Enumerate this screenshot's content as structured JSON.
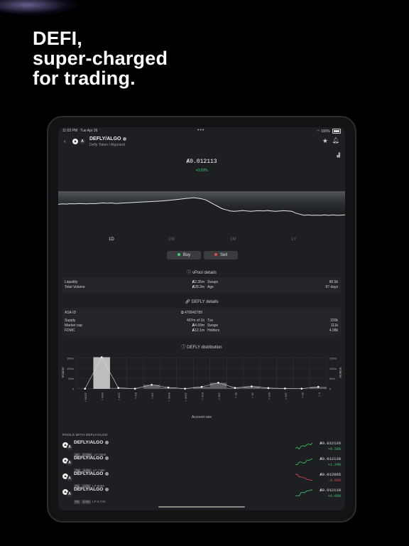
{
  "marketing": {
    "line1": "DEFI,",
    "line2": "super-charged",
    "line3": "for trading."
  },
  "status_bar": {
    "time": "11:03 PM",
    "date": "Tue Apr 26",
    "battery": "100%"
  },
  "header": {
    "pair": "DEFLY/ALGO",
    "subtitle": "Defly Token / Algorand"
  },
  "price": {
    "value": "0.012113",
    "change": "+0.09%"
  },
  "price_chart": {
    "type": "line",
    "values": [
      0.6,
      0.62,
      0.61,
      0.63,
      0.62,
      0.64,
      0.63,
      0.62,
      0.64,
      0.63,
      0.65,
      0.66,
      0.65,
      0.66,
      0.64,
      0.65,
      0.66,
      0.67,
      0.68,
      0.69,
      0.7,
      0.71,
      0.72,
      0.73,
      0.74,
      0.75,
      0.76,
      0.78,
      0.8,
      0.82,
      0.84,
      0.86,
      0.88,
      0.9,
      0.88,
      0.85,
      0.8,
      0.7,
      0.6,
      0.5,
      0.4,
      0.35,
      0.3,
      0.28,
      0.3,
      0.32,
      0.3,
      0.28,
      0.3,
      0.31,
      0.3,
      0.32,
      0.3,
      0.28,
      0.3,
      0.31,
      0.3,
      0.28,
      0.2,
      0.15,
      0.1,
      0.12,
      0.1,
      0.11,
      0.1,
      0.12,
      0.1,
      0.12,
      0.1,
      0.11,
      0.12
    ]
  },
  "timeframes": [
    "1D",
    "1W",
    "1M",
    "1Y"
  ],
  "actions": {
    "buy": "Buy",
    "sell": "Sell",
    "buy_color": "#3ccf68",
    "sell_color": "#e5484d"
  },
  "vpool": {
    "title": "vPool details",
    "liquidity_label": "Liquidity",
    "liquidity": "2.35m",
    "total_volume_label": "Total Volume",
    "total_volume": "28.3m",
    "swaps_label": "Swaps",
    "swaps": "80.5k",
    "age_label": "Age",
    "age": "97 days"
  },
  "defly": {
    "title": "DEFLY details",
    "asa_label": "ASA ID",
    "asa_id": "470842789",
    "supply_label": "Supply",
    "supply": "407m of 1b",
    "market_cap_label": "Market cap",
    "market_cap": "4.93m",
    "fdmc_label": "FDMC",
    "fdmc": "12.1m",
    "txs_label": "Txs",
    "txs": "220k",
    "swaps_label": "Swaps",
    "swaps": "111k",
    "holders_label": "Holders",
    "holders": "4.08k"
  },
  "distribution": {
    "title": "DEFLY distribution",
    "xlabel": "Account size",
    "ylabel": "Volume",
    "yticks": [
      "150m",
      "100m",
      "50m",
      "0"
    ]
  },
  "chart_data": {
    "type": "bar",
    "categories": [
      "100M <",
      "50M <",
      "10M <",
      "5M <",
      "1M <",
      "500K <",
      "100K <",
      "50K <",
      "10K <",
      "5K <",
      "1K <",
      "500 <",
      "100 <",
      "50 <",
      "0 <"
    ],
    "series": [
      {
        "values": [
          1,
          155,
          5,
          1,
          20,
          7,
          1,
          10,
          30,
          5,
          12,
          4,
          2,
          1,
          10
        ]
      },
      {
        "values": [
          1,
          155,
          5,
          1,
          20,
          7,
          1,
          10,
          30,
          5,
          12,
          4,
          2,
          1,
          10
        ]
      }
    ],
    "ylim": [
      0,
      160
    ],
    "xlabel": "Account size",
    "ylabel": "Volume"
  },
  "pools": {
    "heading": "POOLS WITH DEFLY/ALGO",
    "items": [
      {
        "name": "DEFLY/ALGO",
        "tag": "AF",
        "fee": "0.75%",
        "lp": "LP 998K",
        "price": "0.012126",
        "change": "+0.58%",
        "change_color": "#3ccf68",
        "spark": [
          0.3,
          0.4,
          0.2,
          0.5,
          0.6,
          0.5,
          0.7,
          0.8,
          0.7,
          0.9
        ]
      },
      {
        "name": "DEFLY/ALGO",
        "tag": "TM",
        "fee": "0.3%",
        "lp": "LP 739K",
        "price": "0.012138",
        "change": "+1.24%",
        "change_color": "#3ccf68",
        "spark": [
          0.2,
          0.2,
          0.5,
          0.5,
          0.4,
          0.4,
          0.7,
          0.7,
          0.8,
          0.9
        ]
      },
      {
        "name": "DEFLY/ALGO",
        "tag": "PA",
        "fee": "1.0%",
        "lp": "LP 605K",
        "price": "0.012065",
        "change": "-0.56%",
        "change_color": "#e5484d",
        "spark": [
          0.9,
          0.9,
          0.6,
          0.6,
          0.5,
          0.5,
          0.3,
          0.3,
          0.2,
          0.2
        ]
      },
      {
        "name": "DEFLY/ALGO",
        "tag": "PA",
        "fee": "0.3%",
        "lp": "LP 6.72K",
        "price": "0.012118",
        "change": "+0.60%",
        "change_color": "#3ccf68",
        "spark": [
          0.2,
          0.2,
          0.2,
          0.6,
          0.6,
          0.6,
          0.8,
          0.8,
          0.9,
          0.9
        ]
      }
    ]
  }
}
